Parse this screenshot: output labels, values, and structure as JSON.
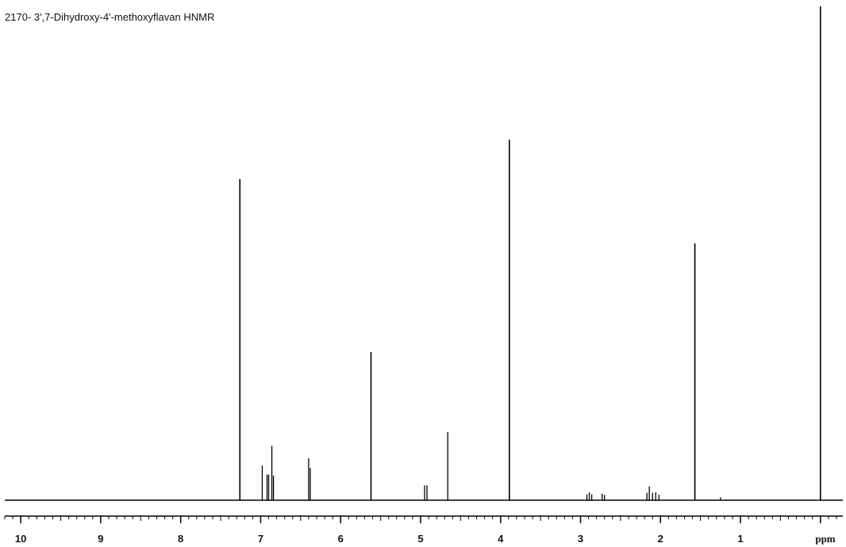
{
  "chart_data": {
    "type": "line",
    "title": "2170- 3',7-Dihydroxy-4'-methoxyflavan HNMR",
    "xlabel": "ppm",
    "ylabel": "",
    "xlim": [
      10.2,
      -0.28
    ],
    "x_reversed": true,
    "ylim": [
      0,
      1.0
    ],
    "grid": false,
    "major_ticks": [
      10,
      9,
      8,
      7,
      6,
      5,
      4,
      3,
      2,
      1
    ],
    "major_tick_labels": [
      "10",
      "9",
      "8",
      "7",
      "6",
      "5",
      "4",
      "3",
      "2",
      "1"
    ],
    "minor_tick_step": 0.1,
    "peaks": [
      {
        "ppm": 7.26,
        "intensity": 0.65
      },
      {
        "ppm": 6.98,
        "intensity": 0.07
      },
      {
        "ppm": 6.92,
        "intensity": 0.052
      },
      {
        "ppm": 6.9,
        "intensity": 0.052
      },
      {
        "ppm": 6.86,
        "intensity": 0.11
      },
      {
        "ppm": 6.84,
        "intensity": 0.05
      },
      {
        "ppm": 6.4,
        "intensity": 0.085
      },
      {
        "ppm": 6.38,
        "intensity": 0.065
      },
      {
        "ppm": 5.62,
        "intensity": 0.3
      },
      {
        "ppm": 4.95,
        "intensity": 0.03
      },
      {
        "ppm": 4.92,
        "intensity": 0.03
      },
      {
        "ppm": 4.66,
        "intensity": 0.138
      },
      {
        "ppm": 3.89,
        "intensity": 0.73
      },
      {
        "ppm": 2.92,
        "intensity": 0.012
      },
      {
        "ppm": 2.89,
        "intensity": 0.016
      },
      {
        "ppm": 2.86,
        "intensity": 0.012
      },
      {
        "ppm": 2.73,
        "intensity": 0.013
      },
      {
        "ppm": 2.7,
        "intensity": 0.011
      },
      {
        "ppm": 2.17,
        "intensity": 0.015
      },
      {
        "ppm": 2.14,
        "intensity": 0.028
      },
      {
        "ppm": 2.1,
        "intensity": 0.015
      },
      {
        "ppm": 2.06,
        "intensity": 0.016
      },
      {
        "ppm": 2.02,
        "intensity": 0.011
      },
      {
        "ppm": 1.57,
        "intensity": 0.52
      },
      {
        "ppm": 1.25,
        "intensity": 0.006
      },
      {
        "ppm": 0.0,
        "intensity": 1.0
      }
    ]
  }
}
